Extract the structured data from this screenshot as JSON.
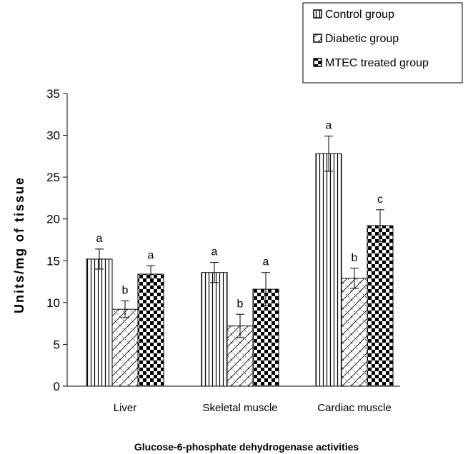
{
  "chart_data": {
    "type": "bar",
    "categories": [
      "Liver",
      "Skeletal muscle",
      "Cardiac muscle"
    ],
    "series": [
      {
        "name": "Control group",
        "values": [
          15.2,
          13.6,
          27.8
        ],
        "errors": [
          1.2,
          1.2,
          2.1
        ],
        "labels": [
          "a",
          "a",
          "a"
        ],
        "pattern": "vertical-stripes"
      },
      {
        "name": "Diabetic group",
        "values": [
          9.2,
          7.2,
          12.9
        ],
        "errors": [
          1.0,
          1.4,
          1.2
        ],
        "labels": [
          "b",
          "b",
          "b"
        ],
        "pattern": "diagonal-hatch"
      },
      {
        "name": "MTEC treated group",
        "values": [
          13.4,
          11.6,
          19.2
        ],
        "errors": [
          1.0,
          2.0,
          1.9
        ],
        "labels": [
          "a",
          "a",
          "c"
        ],
        "pattern": "checkerboard"
      }
    ],
    "xlabel": "Glucose-6-phosphate dehydrogenase activities",
    "ylabel": "Units/mg of tissue",
    "ylim": [
      0,
      35
    ],
    "yticks": [
      0,
      5,
      10,
      15,
      20,
      25,
      30,
      35
    ],
    "grid": false,
    "legend_position": "top-right"
  }
}
